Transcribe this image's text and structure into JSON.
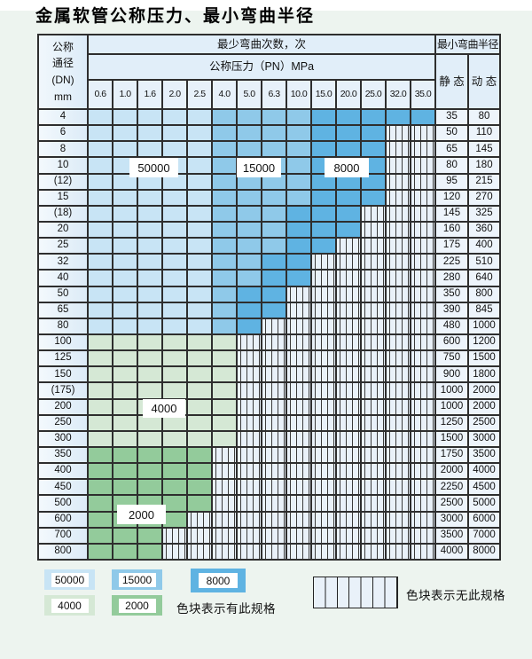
{
  "title": "金属软管公称压力、最小弯曲半径",
  "colors": {
    "b1": "#c8e4f5",
    "b2": "#8fc9e9",
    "b3": "#5fb3e2",
    "g1": "#d5e8d5",
    "g2": "#93cb9b",
    "hatch_bg": "#e9f1f9",
    "border": "#2e2e2e"
  },
  "table": {
    "header": {
      "dn_lines": [
        "公称",
        "通径",
        "(DN)",
        "mm"
      ],
      "cycles": "最少弯曲次数，次",
      "radius": "最小弯曲半径",
      "pn": "公称压力（PN）MPa",
      "static": "静 态",
      "dynamic": "动 态",
      "pn_values": [
        "0.6",
        "1.0",
        "1.6",
        "2.0",
        "2.5",
        "4.0",
        "5.0",
        "6.3",
        "10.0",
        "15.0",
        "20.0",
        "25.0",
        "32.0",
        "35.0"
      ]
    },
    "rows": [
      {
        "dn": "4",
        "segments": [
          [
            "b1",
            5
          ],
          [
            "b2",
            4
          ],
          [
            "b3",
            5
          ]
        ],
        "static": "35",
        "dynamic": "80"
      },
      {
        "dn": "6",
        "segments": [
          [
            "b1",
            5
          ],
          [
            "b2",
            4
          ],
          [
            "b3",
            3
          ]
        ],
        "static": "50",
        "dynamic": "110"
      },
      {
        "dn": "8",
        "segments": [
          [
            "b1",
            5
          ],
          [
            "b2",
            4
          ],
          [
            "b3",
            3
          ]
        ],
        "static": "65",
        "dynamic": "145"
      },
      {
        "dn": "10",
        "segments": [
          [
            "b1",
            5
          ],
          [
            "b2",
            4
          ],
          [
            "b3",
            3
          ]
        ],
        "static": "80",
        "dynamic": "180"
      },
      {
        "dn": "(12)",
        "segments": [
          [
            "b1",
            5
          ],
          [
            "b2",
            4
          ],
          [
            "b3",
            3
          ]
        ],
        "static": "95",
        "dynamic": "215"
      },
      {
        "dn": "15",
        "segments": [
          [
            "b1",
            5
          ],
          [
            "b2",
            4
          ],
          [
            "b3",
            3
          ]
        ],
        "static": "120",
        "dynamic": "270"
      },
      {
        "dn": "(18)",
        "segments": [
          [
            "b1",
            5
          ],
          [
            "b2",
            3
          ],
          [
            "b3",
            3
          ]
        ],
        "static": "145",
        "dynamic": "325"
      },
      {
        "dn": "20",
        "segments": [
          [
            "b1",
            5
          ],
          [
            "b2",
            3
          ],
          [
            "b3",
            3
          ]
        ],
        "static": "160",
        "dynamic": "360"
      },
      {
        "dn": "25",
        "segments": [
          [
            "b1",
            5
          ],
          [
            "b2",
            3
          ],
          [
            "b3",
            2
          ]
        ],
        "static": "175",
        "dynamic": "400"
      },
      {
        "dn": "32",
        "segments": [
          [
            "b1",
            5
          ],
          [
            "b2",
            2
          ],
          [
            "b3",
            2
          ]
        ],
        "static": "225",
        "dynamic": "510"
      },
      {
        "dn": "40",
        "segments": [
          [
            "b1",
            5
          ],
          [
            "b2",
            2
          ],
          [
            "b3",
            2
          ]
        ],
        "static": "280",
        "dynamic": "640"
      },
      {
        "dn": "50",
        "segments": [
          [
            "b1",
            5
          ],
          [
            "b2",
            1
          ],
          [
            "b3",
            2
          ]
        ],
        "static": "350",
        "dynamic": "800"
      },
      {
        "dn": "65",
        "segments": [
          [
            "b1",
            5
          ],
          [
            "b2",
            1
          ],
          [
            "b3",
            2
          ]
        ],
        "static": "390",
        "dynamic": "845"
      },
      {
        "dn": "80",
        "segments": [
          [
            "b1",
            5
          ],
          [
            "b2",
            1
          ],
          [
            "b3",
            1
          ]
        ],
        "static": "480",
        "dynamic": "1000"
      },
      {
        "dn": "100",
        "segments": [
          [
            "g1",
            6
          ]
        ],
        "static": "600",
        "dynamic": "1200"
      },
      {
        "dn": "125",
        "segments": [
          [
            "g1",
            6
          ]
        ],
        "static": "750",
        "dynamic": "1500"
      },
      {
        "dn": "150",
        "segments": [
          [
            "g1",
            6
          ]
        ],
        "static": "900",
        "dynamic": "1800"
      },
      {
        "dn": "(175)",
        "segments": [
          [
            "g1",
            6
          ]
        ],
        "static": "1000",
        "dynamic": "2000"
      },
      {
        "dn": "200",
        "segments": [
          [
            "g1",
            6
          ]
        ],
        "static": "1000",
        "dynamic": "2000"
      },
      {
        "dn": "250",
        "segments": [
          [
            "g1",
            6
          ]
        ],
        "static": "1250",
        "dynamic": "2500"
      },
      {
        "dn": "300",
        "segments": [
          [
            "g1",
            6
          ]
        ],
        "static": "1500",
        "dynamic": "3000"
      },
      {
        "dn": "350",
        "segments": [
          [
            "g2",
            5
          ]
        ],
        "static": "1750",
        "dynamic": "3500"
      },
      {
        "dn": "400",
        "segments": [
          [
            "g2",
            5
          ]
        ],
        "static": "2000",
        "dynamic": "4000"
      },
      {
        "dn": "450",
        "segments": [
          [
            "g2",
            5
          ]
        ],
        "static": "2250",
        "dynamic": "4500"
      },
      {
        "dn": "500",
        "segments": [
          [
            "g2",
            5
          ]
        ],
        "static": "2500",
        "dynamic": "5000"
      },
      {
        "dn": "600",
        "segments": [
          [
            "g2",
            4
          ]
        ],
        "static": "3000",
        "dynamic": "6000"
      },
      {
        "dn": "700",
        "segments": [
          [
            "g2",
            3
          ]
        ],
        "static": "3500",
        "dynamic": "7000"
      },
      {
        "dn": "800",
        "segments": [
          [
            "g2",
            3
          ]
        ],
        "static": "4000",
        "dynamic": "8000"
      }
    ]
  },
  "overlay_labels": [
    {
      "id": "50000",
      "text": "50000"
    },
    {
      "id": "15000",
      "text": "15000"
    },
    {
      "id": "8000",
      "text": "8000"
    },
    {
      "id": "4000",
      "text": "4000"
    },
    {
      "id": "2000",
      "text": "2000"
    }
  ],
  "legend": {
    "swatches": [
      {
        "label": "50000",
        "color": "b1"
      },
      {
        "label": "15000",
        "color": "b2"
      },
      {
        "label": "8000",
        "color": "b3"
      },
      {
        "label": "4000",
        "color": "g1"
      },
      {
        "label": "2000",
        "color": "g2"
      }
    ],
    "has_spec_text": "色块表示有此规格",
    "no_spec_text": "色块表示无此规格"
  }
}
